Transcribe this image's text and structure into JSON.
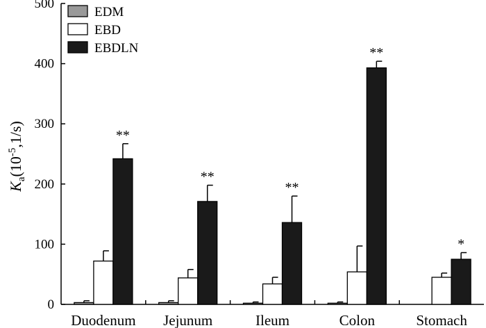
{
  "chart_data": {
    "type": "bar",
    "categories": [
      "Duodenum",
      "Jejunum",
      "Ileum",
      "Colon",
      "Stomach"
    ],
    "series": [
      {
        "name": "EDM",
        "color": "#999999",
        "values": [
          3,
          3,
          2,
          2,
          null
        ],
        "errors": [
          3,
          3,
          2,
          2,
          null
        ]
      },
      {
        "name": "EBD",
        "color": "#ffffff",
        "values": [
          72,
          44,
          34,
          54,
          45
        ],
        "errors": [
          17,
          14,
          11,
          43,
          7
        ]
      },
      {
        "name": "EBDLN",
        "color": "#1a1a1a",
        "values": [
          242,
          171,
          136,
          393,
          75
        ],
        "errors": [
          25,
          27,
          44,
          11,
          11
        ]
      }
    ],
    "significance": [
      "**",
      "**",
      "**",
      "**",
      "*"
    ],
    "ylabel": {
      "main": "K",
      "sub": "a",
      "open": "(10",
      "exp": "-5",
      "close": ",1/s)"
    },
    "ylim": [
      0,
      500
    ],
    "yticks": [
      "0",
      "100",
      "200",
      "300",
      "400",
      "500"
    ],
    "legend_position": "top-left",
    "grid": false
  }
}
